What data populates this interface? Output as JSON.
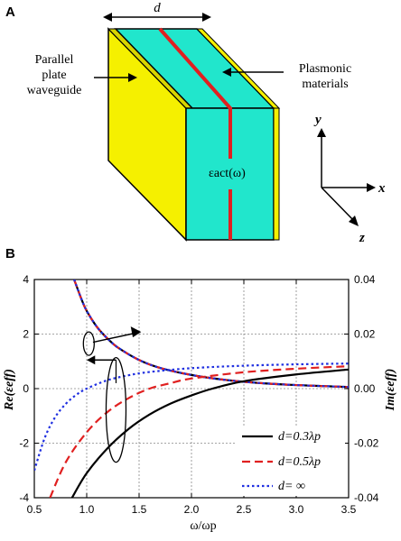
{
  "figure": {
    "panel_a_label": "A",
    "panel_b_label": "B",
    "dimension_label": "d",
    "left_annotation_lines": [
      "Parallel",
      "plate",
      "waveguide"
    ],
    "right_annotation_lines": [
      "Plasmonic",
      "materials"
    ],
    "epsilon_label": "εact(ω)",
    "axes3d": {
      "y": "y",
      "x": "x",
      "z": "z"
    },
    "colors": {
      "plate": "#f5f000",
      "material": "#21e6cc",
      "red_line": "#e02020"
    }
  },
  "chart_data": {
    "type": "line",
    "xlabel": "ω/ωp",
    "ylabel_left": "Re(εeff)",
    "ylabel_right": "Im(εeff)",
    "xlim": [
      0.5,
      3.5
    ],
    "ylim_left": [
      -4,
      4
    ],
    "ylim_right": [
      -0.04,
      0.04
    ],
    "xticks": [
      "0.5",
      "1.0",
      "1.5",
      "2.0",
      "2.5",
      "3.0",
      "3.5"
    ],
    "yticks_left": [
      "-4",
      "-2",
      "0",
      "2",
      "4"
    ],
    "yticks_right": [
      "-0.04",
      "-0.02",
      "0.00",
      "0.02",
      "0.04"
    ],
    "grid": true,
    "legend_position": "bottom-right",
    "series": [
      {
        "name": "d=0.3λp",
        "color": "#000000",
        "dash": "solid",
        "x": [
          0.86,
          1.0,
          1.2,
          1.4,
          1.6,
          1.8,
          2.0,
          2.2,
          2.5,
          3.0,
          3.5
        ],
        "y": [
          -4.0,
          -3.1,
          -2.18,
          -1.48,
          -0.95,
          -0.55,
          -0.25,
          0.0,
          0.27,
          0.52,
          0.7
        ]
      },
      {
        "name": "d=0.5λp",
        "color": "#e02020",
        "dash": "dashed",
        "x": [
          0.65,
          0.8,
          1.0,
          1.2,
          1.4,
          1.6,
          1.8,
          2.0,
          2.5,
          3.0,
          3.5
        ],
        "y": [
          -4.0,
          -2.7,
          -1.6,
          -0.85,
          -0.35,
          0.0,
          0.2,
          0.37,
          0.6,
          0.73,
          0.82
        ]
      },
      {
        "name": "d= ∞",
        "color": "#1f2fe0",
        "dash": "dotted",
        "x": [
          0.5,
          0.6,
          0.7,
          0.8,
          0.9,
          1.0,
          1.2,
          1.4,
          1.6,
          2.0,
          2.5,
          3.0,
          3.5
        ],
        "y": [
          -3.0,
          -1.8,
          -1.04,
          -0.56,
          -0.23,
          0.0,
          0.31,
          0.49,
          0.61,
          0.75,
          0.84,
          0.89,
          0.92
        ]
      }
    ],
    "im_curve": {
      "note": "Im(εeff) curve, right axis, shown by all series (overlapping)",
      "x": [
        0.88,
        0.95,
        1.0,
        1.1,
        1.2,
        1.3,
        1.5,
        1.7,
        2.0,
        2.3,
        2.6,
        3.0,
        3.5
      ],
      "y": [
        0.04,
        0.0328,
        0.0285,
        0.0225,
        0.0183,
        0.015,
        0.0105,
        0.0076,
        0.005,
        0.0033,
        0.0022,
        0.0013,
        0.0006
      ]
    }
  }
}
